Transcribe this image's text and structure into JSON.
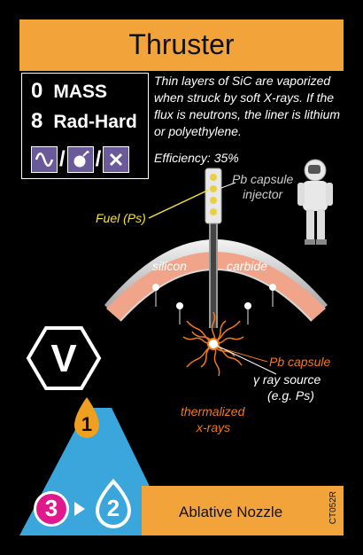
{
  "card": {
    "title": "Thruster",
    "stats": {
      "mass_value": "0",
      "mass_label": "MASS",
      "rad_value": "8",
      "rad_label": "Rad-Hard"
    },
    "icons": [
      "sine-wave-icon",
      "bomb-icon",
      "x-icon"
    ],
    "description": "Thin layers of SiC are vaporized when struck by soft X-rays. If the flux is neutrons, the liner is lithium or polyethylene.",
    "efficiency": "Efficiency: 35%",
    "diagram": {
      "injector": "Pb capsule\ninjector",
      "fuel": "Fuel (Ps)",
      "silicon": "silicon",
      "carbide": "carbide",
      "pb_capsule": "Pb capsule",
      "gamma": "γ ray source",
      "gamma_sub": "(e.g. Ps)",
      "thermalized": "thermalized",
      "xrays": "x-rays"
    },
    "badge_letter": "V",
    "tier_number": "1",
    "upgrade_from": "3",
    "upgrade_to": "2",
    "bottom_label": "Ablative Nozzle",
    "card_code": "CT052R",
    "colors": {
      "orange": "#f2a43a",
      "purple_icon": "#6a5a9a",
      "arc_fill": "#f0a58a",
      "triangle_blue": "#3aa6dc",
      "magenta": "#e0188c",
      "fuel_yellow": "#f5e234",
      "wave_orange": "#f07a1a"
    }
  }
}
